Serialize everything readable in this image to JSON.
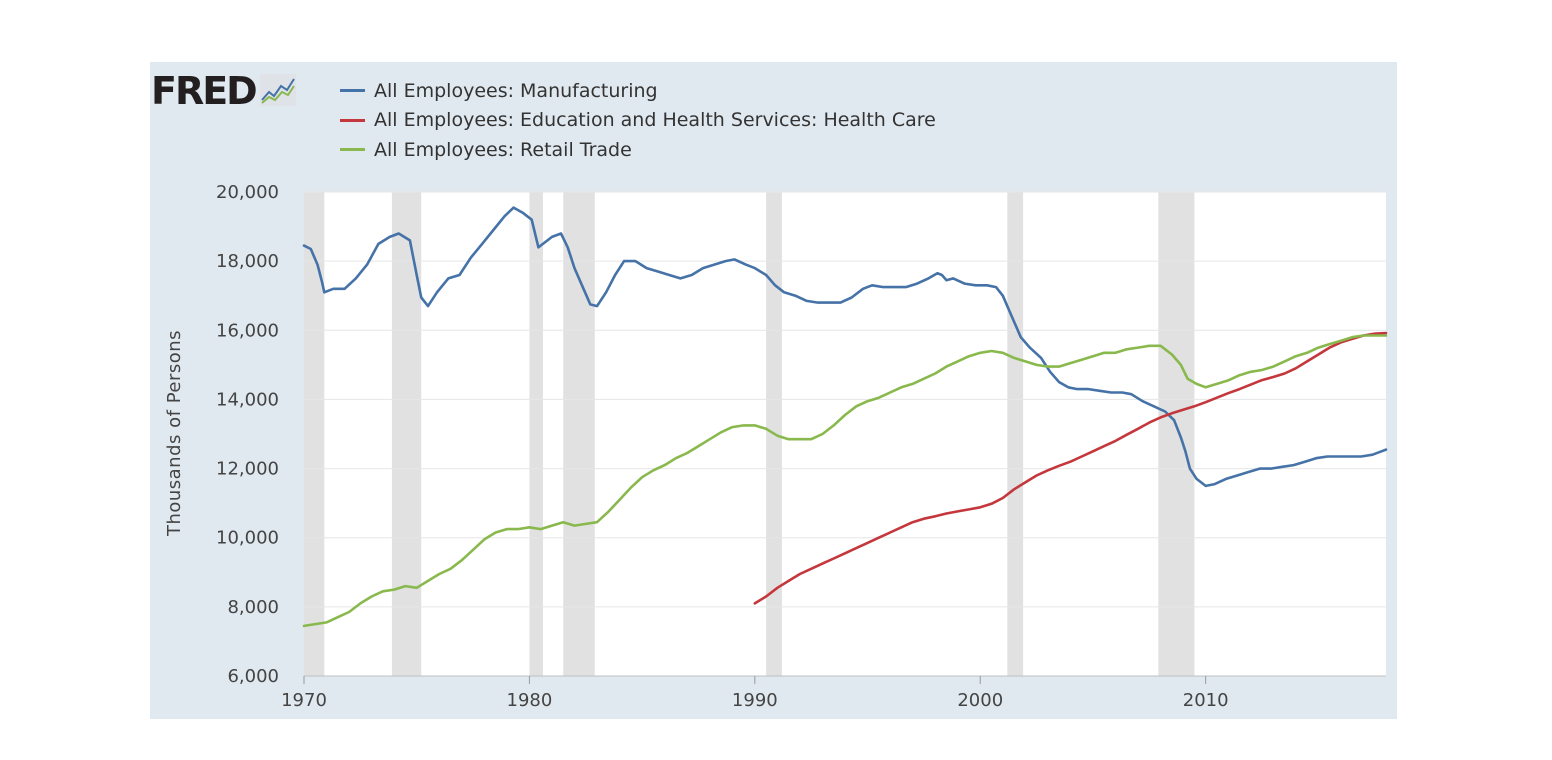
{
  "brand": {
    "name": "FRED"
  },
  "colors": {
    "panel": "#e1e9f0",
    "plot": "#ffffff",
    "recession": "#e1e1e1",
    "grid": "#e6e6e6"
  },
  "chart_data": {
    "type": "line",
    "title": "",
    "xlabel": "",
    "ylabel": "Thousands of Persons",
    "xlim": [
      1970,
      2018
    ],
    "ylim": [
      6000,
      20000
    ],
    "x_ticks": [
      1970,
      1980,
      1990,
      2000,
      2010
    ],
    "x_tick_labels": [
      "1970",
      "1980",
      "1990",
      "2000",
      "2010"
    ],
    "y_ticks": [
      6000,
      8000,
      10000,
      12000,
      14000,
      16000,
      18000,
      20000
    ],
    "y_tick_labels": [
      "6,000",
      "8,000",
      "10,000",
      "12,000",
      "14,000",
      "16,000",
      "18,000",
      "20,000"
    ],
    "grid": true,
    "legend_position": "top-left",
    "recessions": [
      [
        1970.0,
        1970.9
      ],
      [
        1973.9,
        1975.2
      ],
      [
        1980.0,
        1980.6
      ],
      [
        1981.5,
        1982.9
      ],
      [
        1990.5,
        1991.2
      ],
      [
        2001.2,
        2001.9
      ],
      [
        2007.9,
        2009.5
      ]
    ],
    "series": [
      {
        "name": "All Employees: Manufacturing",
        "color": "#4572a7",
        "points": [
          [
            1970.0,
            18450
          ],
          [
            1970.3,
            18350
          ],
          [
            1970.6,
            17900
          ],
          [
            1970.8,
            17400
          ],
          [
            1970.9,
            17100
          ],
          [
            1971.3,
            17200
          ],
          [
            1971.8,
            17200
          ],
          [
            1972.3,
            17500
          ],
          [
            1972.8,
            17900
          ],
          [
            1973.3,
            18500
          ],
          [
            1973.8,
            18700
          ],
          [
            1974.2,
            18800
          ],
          [
            1974.7,
            18600
          ],
          [
            1975.0,
            17600
          ],
          [
            1975.2,
            16950
          ],
          [
            1975.5,
            16700
          ],
          [
            1975.9,
            17100
          ],
          [
            1976.4,
            17500
          ],
          [
            1976.9,
            17600
          ],
          [
            1977.4,
            18100
          ],
          [
            1977.9,
            18500
          ],
          [
            1978.4,
            18900
          ],
          [
            1978.9,
            19300
          ],
          [
            1979.3,
            19550
          ],
          [
            1979.7,
            19400
          ],
          [
            1980.1,
            19200
          ],
          [
            1980.4,
            18400
          ],
          [
            1980.6,
            18500
          ],
          [
            1981.0,
            18700
          ],
          [
            1981.4,
            18800
          ],
          [
            1981.7,
            18400
          ],
          [
            1982.0,
            17800
          ],
          [
            1982.4,
            17200
          ],
          [
            1982.7,
            16750
          ],
          [
            1983.0,
            16700
          ],
          [
            1983.4,
            17100
          ],
          [
            1983.8,
            17600
          ],
          [
            1984.2,
            18000
          ],
          [
            1984.7,
            18000
          ],
          [
            1985.2,
            17800
          ],
          [
            1985.7,
            17700
          ],
          [
            1986.2,
            17600
          ],
          [
            1986.7,
            17500
          ],
          [
            1987.2,
            17600
          ],
          [
            1987.7,
            17800
          ],
          [
            1988.2,
            17900
          ],
          [
            1988.7,
            18000
          ],
          [
            1989.1,
            18050
          ],
          [
            1989.6,
            17900
          ],
          [
            1990.0,
            17800
          ],
          [
            1990.5,
            17600
          ],
          [
            1990.9,
            17300
          ],
          [
            1991.3,
            17100
          ],
          [
            1991.8,
            17000
          ],
          [
            1992.3,
            16850
          ],
          [
            1992.8,
            16800
          ],
          [
            1993.3,
            16800
          ],
          [
            1993.8,
            16800
          ],
          [
            1994.3,
            16950
          ],
          [
            1994.8,
            17200
          ],
          [
            1995.2,
            17300
          ],
          [
            1995.7,
            17250
          ],
          [
            1996.2,
            17250
          ],
          [
            1996.7,
            17250
          ],
          [
            1997.2,
            17350
          ],
          [
            1997.7,
            17500
          ],
          [
            1998.1,
            17650
          ],
          [
            1998.3,
            17600
          ],
          [
            1998.5,
            17450
          ],
          [
            1998.8,
            17500
          ],
          [
            1999.3,
            17350
          ],
          [
            1999.8,
            17300
          ],
          [
            2000.3,
            17300
          ],
          [
            2000.7,
            17250
          ],
          [
            2001.0,
            17000
          ],
          [
            2001.4,
            16400
          ],
          [
            2001.8,
            15800
          ],
          [
            2002.2,
            15500
          ],
          [
            2002.7,
            15200
          ],
          [
            2003.1,
            14800
          ],
          [
            2003.5,
            14500
          ],
          [
            2003.9,
            14350
          ],
          [
            2004.3,
            14300
          ],
          [
            2004.8,
            14300
          ],
          [
            2005.3,
            14250
          ],
          [
            2005.8,
            14200
          ],
          [
            2006.3,
            14200
          ],
          [
            2006.7,
            14150
          ],
          [
            2007.2,
            13950
          ],
          [
            2007.7,
            13800
          ],
          [
            2008.2,
            13650
          ],
          [
            2008.6,
            13400
          ],
          [
            2008.9,
            12900
          ],
          [
            2009.1,
            12500
          ],
          [
            2009.3,
            12000
          ],
          [
            2009.6,
            11700
          ],
          [
            2010.0,
            11500
          ],
          [
            2010.4,
            11550
          ],
          [
            2010.9,
            11700
          ],
          [
            2011.4,
            11800
          ],
          [
            2011.9,
            11900
          ],
          [
            2012.4,
            12000
          ],
          [
            2012.9,
            12000
          ],
          [
            2013.4,
            12050
          ],
          [
            2013.9,
            12100
          ],
          [
            2014.4,
            12200
          ],
          [
            2014.9,
            12300
          ],
          [
            2015.4,
            12350
          ],
          [
            2015.9,
            12350
          ],
          [
            2016.4,
            12350
          ],
          [
            2016.9,
            12350
          ],
          [
            2017.4,
            12400
          ],
          [
            2017.8,
            12500
          ],
          [
            2018.0,
            12550
          ]
        ]
      },
      {
        "name": "All Employees: Education and Health Services: Health Care",
        "color": "#c4373c",
        "points": [
          [
            1990.0,
            8100
          ],
          [
            1990.5,
            8300
          ],
          [
            1991.0,
            8550
          ],
          [
            1991.5,
            8750
          ],
          [
            1992.0,
            8950
          ],
          [
            1992.5,
            9100
          ],
          [
            1993.0,
            9250
          ],
          [
            1993.5,
            9400
          ],
          [
            1994.0,
            9550
          ],
          [
            1994.5,
            9700
          ],
          [
            1995.0,
            9850
          ],
          [
            1995.5,
            10000
          ],
          [
            1996.0,
            10150
          ],
          [
            1996.5,
            10300
          ],
          [
            1997.0,
            10450
          ],
          [
            1997.5,
            10550
          ],
          [
            1998.0,
            10620
          ],
          [
            1998.5,
            10700
          ],
          [
            1999.0,
            10760
          ],
          [
            1999.5,
            10820
          ],
          [
            2000.0,
            10880
          ],
          [
            2000.5,
            10980
          ],
          [
            2001.0,
            11150
          ],
          [
            2001.5,
            11400
          ],
          [
            2002.0,
            11600
          ],
          [
            2002.5,
            11800
          ],
          [
            2003.0,
            11950
          ],
          [
            2003.5,
            12080
          ],
          [
            2004.0,
            12200
          ],
          [
            2004.5,
            12350
          ],
          [
            2005.0,
            12500
          ],
          [
            2005.5,
            12650
          ],
          [
            2006.0,
            12800
          ],
          [
            2006.5,
            12980
          ],
          [
            2007.0,
            13150
          ],
          [
            2007.5,
            13330
          ],
          [
            2008.0,
            13480
          ],
          [
            2008.5,
            13600
          ],
          [
            2009.0,
            13700
          ],
          [
            2009.5,
            13800
          ],
          [
            2010.0,
            13920
          ],
          [
            2010.5,
            14050
          ],
          [
            2011.0,
            14180
          ],
          [
            2011.5,
            14300
          ],
          [
            2012.0,
            14430
          ],
          [
            2012.5,
            14560
          ],
          [
            2013.0,
            14650
          ],
          [
            2013.5,
            14750
          ],
          [
            2014.0,
            14900
          ],
          [
            2014.5,
            15100
          ],
          [
            2015.0,
            15300
          ],
          [
            2015.5,
            15500
          ],
          [
            2016.0,
            15650
          ],
          [
            2016.5,
            15750
          ],
          [
            2017.0,
            15850
          ],
          [
            2017.5,
            15900
          ],
          [
            2018.0,
            15920
          ]
        ]
      },
      {
        "name": "All Employees: Retail Trade",
        "color": "#89b84c",
        "points": [
          [
            1970.0,
            7450
          ],
          [
            1970.5,
            7500
          ],
          [
            1971.0,
            7550
          ],
          [
            1971.5,
            7700
          ],
          [
            1972.0,
            7850
          ],
          [
            1972.5,
            8100
          ],
          [
            1973.0,
            8300
          ],
          [
            1973.5,
            8450
          ],
          [
            1974.0,
            8500
          ],
          [
            1974.5,
            8600
          ],
          [
            1975.0,
            8550
          ],
          [
            1975.5,
            8750
          ],
          [
            1976.0,
            8950
          ],
          [
            1976.5,
            9100
          ],
          [
            1977.0,
            9350
          ],
          [
            1977.5,
            9650
          ],
          [
            1978.0,
            9950
          ],
          [
            1978.5,
            10150
          ],
          [
            1979.0,
            10250
          ],
          [
            1979.5,
            10250
          ],
          [
            1980.0,
            10300
          ],
          [
            1980.5,
            10250
          ],
          [
            1981.0,
            10350
          ],
          [
            1981.5,
            10450
          ],
          [
            1982.0,
            10350
          ],
          [
            1982.5,
            10400
          ],
          [
            1983.0,
            10450
          ],
          [
            1983.5,
            10750
          ],
          [
            1984.0,
            11100
          ],
          [
            1984.5,
            11450
          ],
          [
            1985.0,
            11750
          ],
          [
            1985.5,
            11950
          ],
          [
            1986.0,
            12100
          ],
          [
            1986.5,
            12300
          ],
          [
            1987.0,
            12450
          ],
          [
            1987.5,
            12650
          ],
          [
            1988.0,
            12850
          ],
          [
            1988.5,
            13050
          ],
          [
            1989.0,
            13200
          ],
          [
            1989.5,
            13250
          ],
          [
            1990.0,
            13250
          ],
          [
            1990.5,
            13150
          ],
          [
            1991.0,
            12950
          ],
          [
            1991.5,
            12850
          ],
          [
            1992.0,
            12850
          ],
          [
            1992.5,
            12850
          ],
          [
            1993.0,
            13000
          ],
          [
            1993.5,
            13250
          ],
          [
            1994.0,
            13550
          ],
          [
            1994.5,
            13800
          ],
          [
            1995.0,
            13950
          ],
          [
            1995.5,
            14050
          ],
          [
            1996.0,
            14200
          ],
          [
            1996.5,
            14350
          ],
          [
            1997.0,
            14450
          ],
          [
            1997.5,
            14600
          ],
          [
            1998.0,
            14750
          ],
          [
            1998.5,
            14950
          ],
          [
            1999.0,
            15100
          ],
          [
            1999.5,
            15250
          ],
          [
            2000.0,
            15350
          ],
          [
            2000.5,
            15400
          ],
          [
            2001.0,
            15350
          ],
          [
            2001.5,
            15200
          ],
          [
            2002.0,
            15100
          ],
          [
            2002.5,
            15000
          ],
          [
            2003.0,
            14950
          ],
          [
            2003.5,
            14950
          ],
          [
            2004.0,
            15050
          ],
          [
            2004.5,
            15150
          ],
          [
            2005.0,
            15250
          ],
          [
            2005.5,
            15350
          ],
          [
            2006.0,
            15350
          ],
          [
            2006.5,
            15450
          ],
          [
            2007.0,
            15500
          ],
          [
            2007.5,
            15550
          ],
          [
            2008.0,
            15550
          ],
          [
            2008.5,
            15300
          ],
          [
            2008.9,
            15000
          ],
          [
            2009.2,
            14600
          ],
          [
            2009.6,
            14450
          ],
          [
            2010.0,
            14350
          ],
          [
            2010.5,
            14450
          ],
          [
            2011.0,
            14550
          ],
          [
            2011.5,
            14700
          ],
          [
            2012.0,
            14800
          ],
          [
            2012.5,
            14850
          ],
          [
            2013.0,
            14950
          ],
          [
            2013.5,
            15100
          ],
          [
            2014.0,
            15250
          ],
          [
            2014.5,
            15350
          ],
          [
            2015.0,
            15500
          ],
          [
            2015.5,
            15600
          ],
          [
            2016.0,
            15700
          ],
          [
            2016.5,
            15800
          ],
          [
            2017.0,
            15850
          ],
          [
            2017.5,
            15850
          ],
          [
            2018.0,
            15850
          ]
        ]
      }
    ]
  }
}
